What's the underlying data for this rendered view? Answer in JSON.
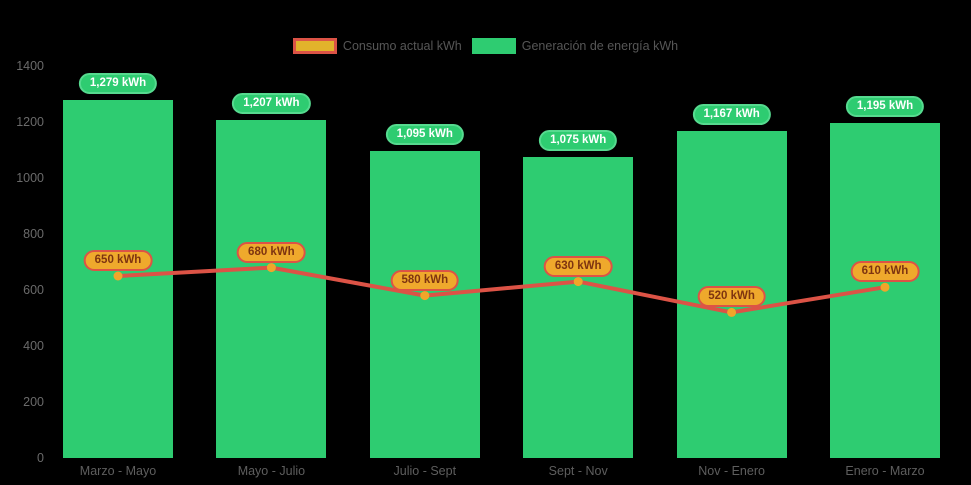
{
  "chart_data": {
    "type": "bar",
    "subtype": "bar-with-line-overlay",
    "title": "",
    "xlabel": "",
    "ylabel": "",
    "categories": [
      "Marzo - Mayo",
      "Mayo - Julio",
      "Julio - Sept",
      "Sept - Nov",
      "Nov - Enero",
      "Enero - Marzo"
    ],
    "series": [
      {
        "name": "Consumo actual kWh",
        "type": "line",
        "values": [
          650,
          680,
          580,
          630,
          520,
          610
        ],
        "labels": [
          "650 kWh",
          "680 kWh",
          "580 kWh",
          "630 kWh",
          "520 kWh",
          "610 kWh"
        ]
      },
      {
        "name": "Generación de energía kWh",
        "type": "bar",
        "values": [
          1279,
          1207,
          1095,
          1075,
          1167,
          1195
        ],
        "labels": [
          "1,279 kWh",
          "1,207 kWh",
          "1,095 kWh",
          "1,075 kWh",
          "1,167 kWh",
          "1,195 kWh"
        ]
      }
    ],
    "yticks": [
      0,
      200,
      400,
      600,
      800,
      1000,
      1200,
      1400
    ],
    "ylim": [
      0,
      1400
    ],
    "grid": false,
    "legend_position": "top",
    "colors": {
      "background": "#000000",
      "bar": "#2ecc71",
      "bar_badge_bg": "#2ecc71",
      "bar_badge_border": "#56da8f",
      "bar_badge_text": "#ffffff",
      "line": "#dc5346",
      "point": "#f0a62a",
      "line_badge_bg": "#efa92c",
      "line_badge_border": "#dc5346",
      "line_badge_text": "#7e3410",
      "axis_text": "#6a6a6a",
      "legend_text": "#565656"
    }
  }
}
